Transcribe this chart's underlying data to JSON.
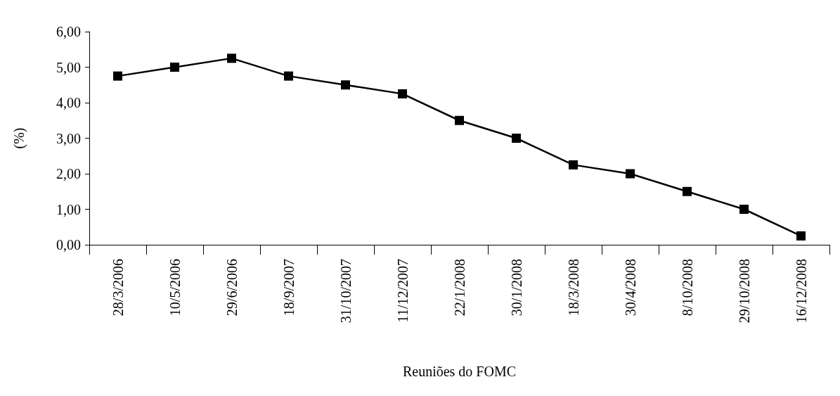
{
  "chart_data": {
    "type": "line",
    "xlabel": "Reuniões do FOMC",
    "ylabel": "(%)",
    "categories": [
      "28/3/2006",
      "10/5/2006",
      "29/6/2006",
      "18/9/2007",
      "31/10/2007",
      "11/12/2007",
      "22/1/2008",
      "30/1/2008",
      "18/3/2008",
      "30/4/2008",
      "8/10/2008",
      "29/10/2008",
      "16/12/2008"
    ],
    "series": [
      {
        "color": "#000000",
        "values": [
          4.75,
          5.0,
          5.25,
          4.75,
          4.5,
          4.25,
          3.5,
          3.0,
          2.25,
          2.0,
          1.5,
          1.0,
          0.25
        ]
      }
    ],
    "ylim": [
      0,
      6
    ],
    "yticks": [
      {
        "value": 0,
        "label": "0,00"
      },
      {
        "value": 1,
        "label": "1,00"
      },
      {
        "value": 2,
        "label": "2,00"
      },
      {
        "value": 3,
        "label": "3,00"
      },
      {
        "value": 4,
        "label": "4,00"
      },
      {
        "value": 5,
        "label": "5,00"
      },
      {
        "value": 6,
        "label": "6,00"
      }
    ],
    "grid": false,
    "marker": "square",
    "line_style": "solid"
  }
}
